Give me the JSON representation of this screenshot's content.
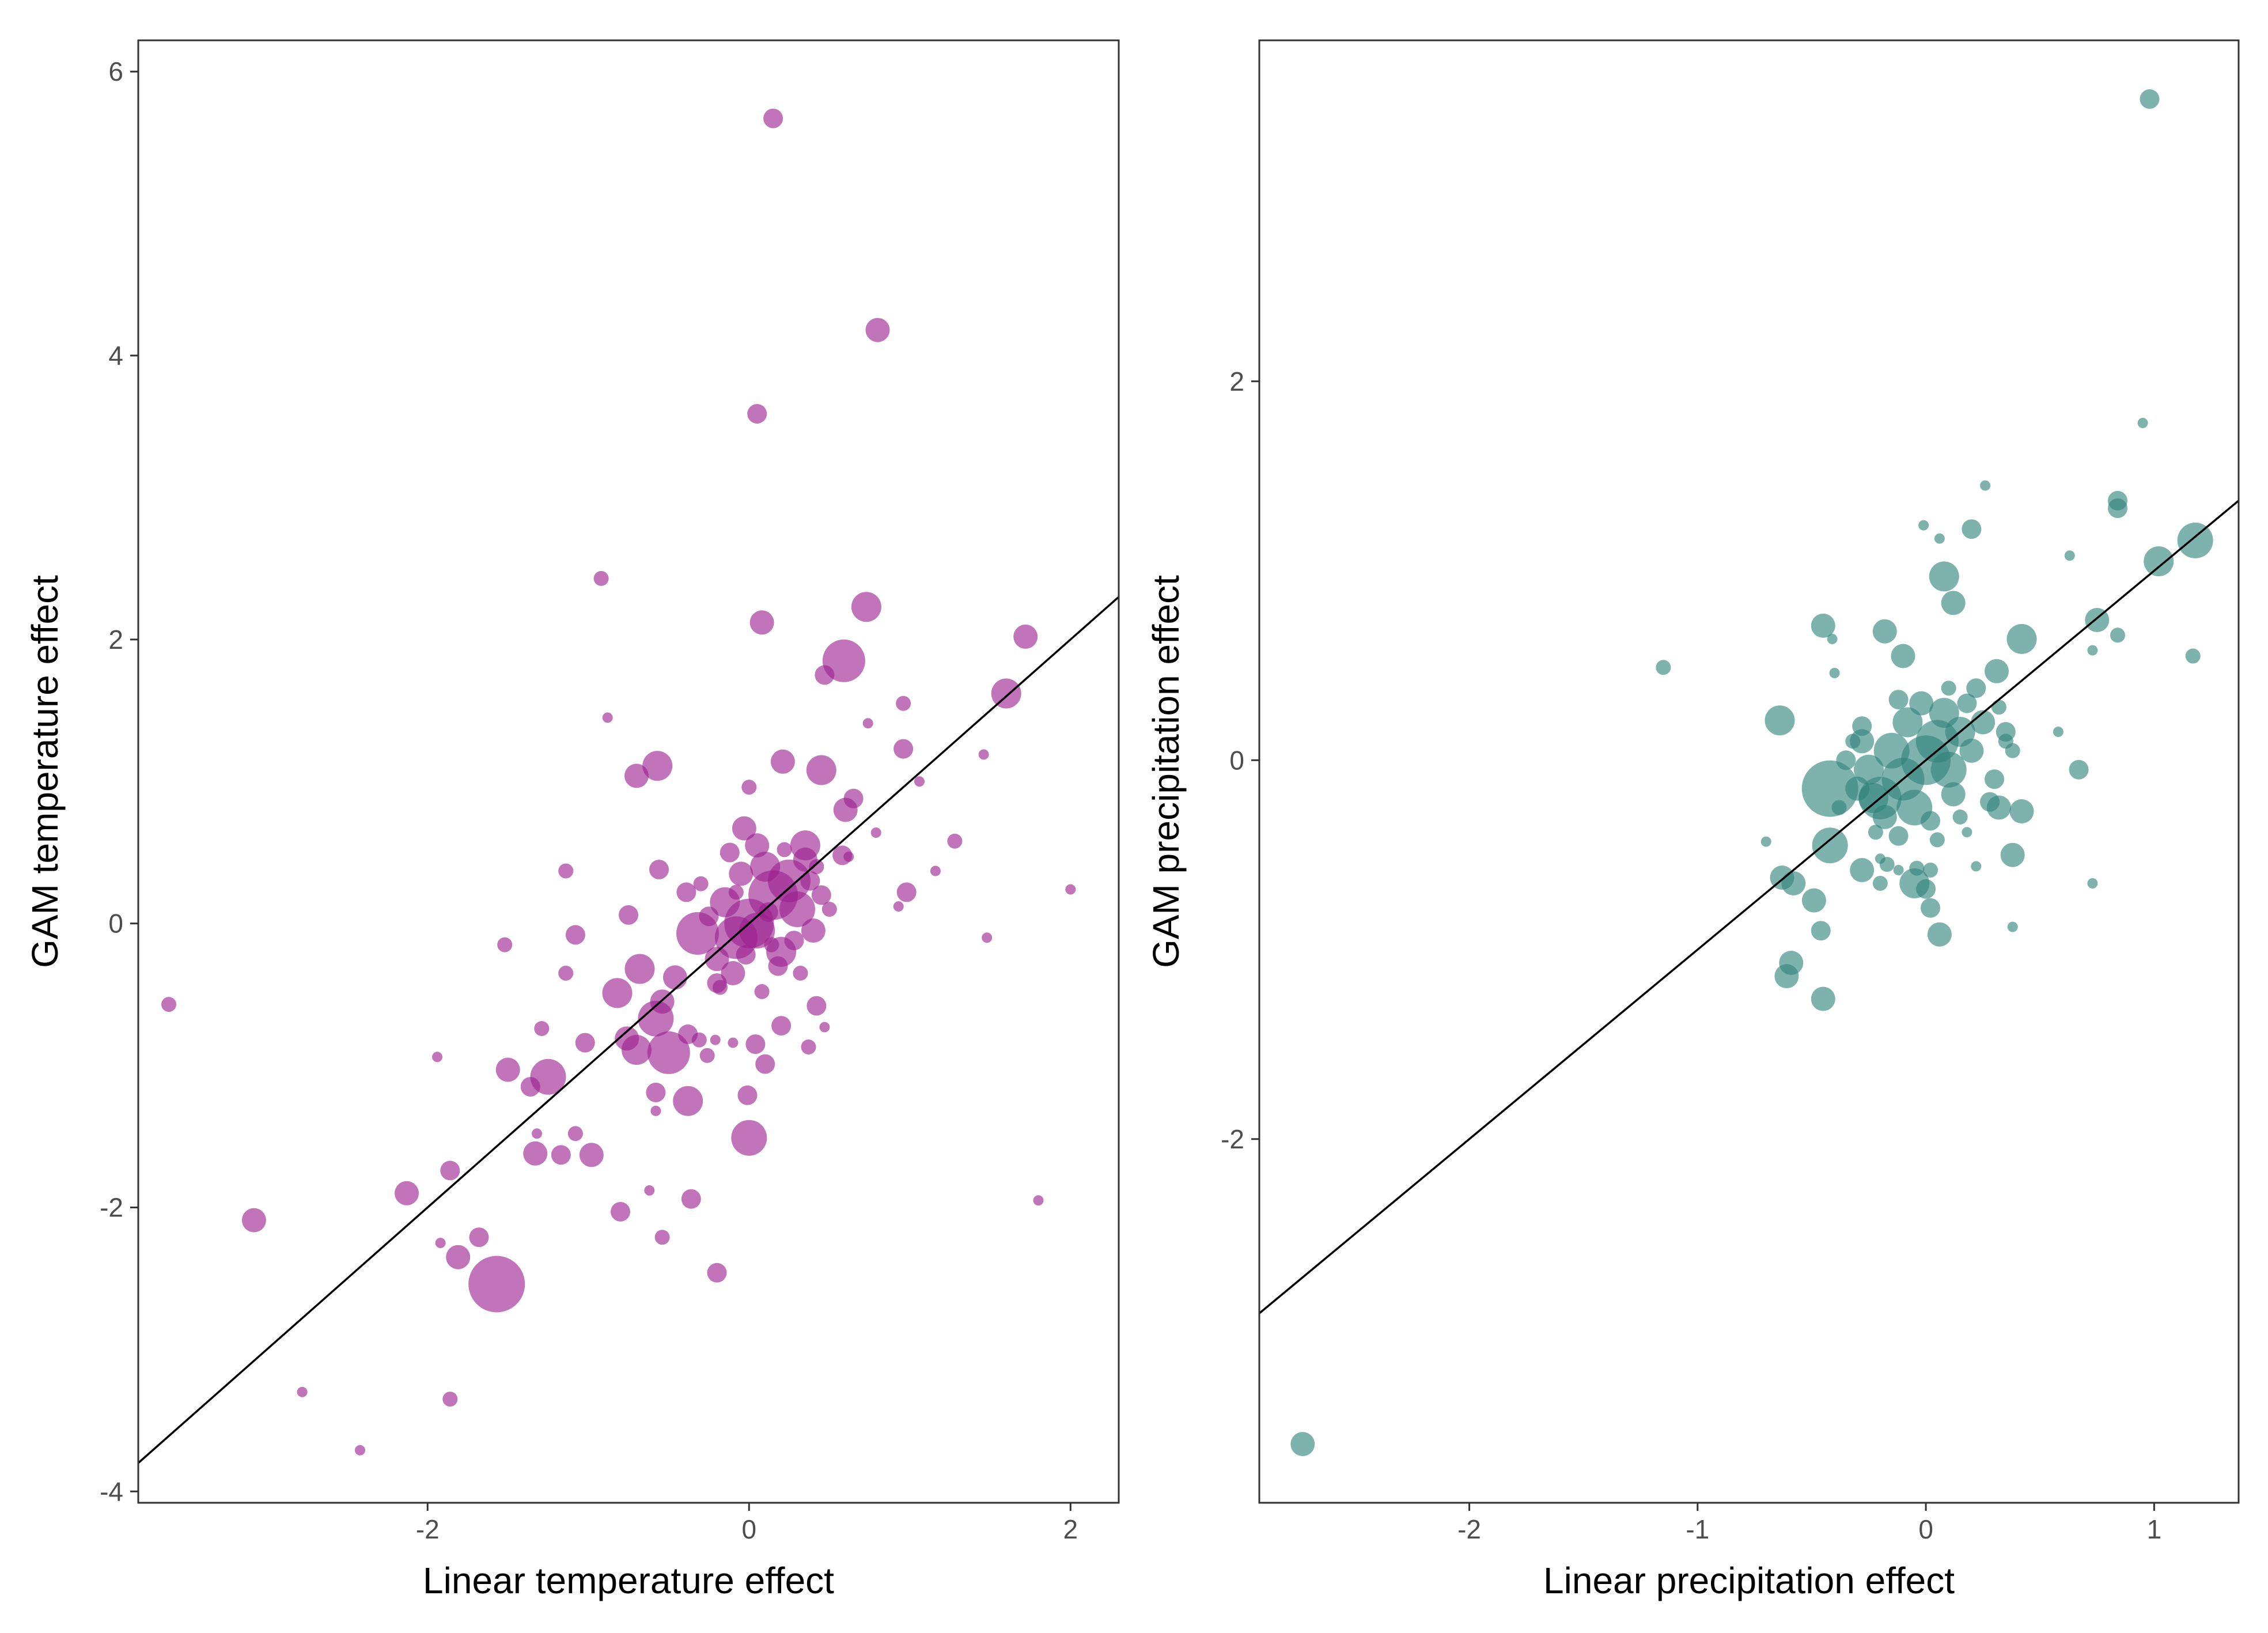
{
  "chart_data": [
    {
      "type": "scatter",
      "xlabel": "Linear temperature effect",
      "ylabel": "GAM temperature effect",
      "xlim": [
        -3.8,
        2.3
      ],
      "ylim": [
        -4.08,
        6.22
      ],
      "x_ticks": [
        -2,
        0,
        2
      ],
      "y_ticks": [
        -4,
        -2,
        0,
        2,
        4,
        6
      ],
      "grid": false,
      "legend": "none",
      "point_color": "#9b1f8e",
      "reference_line": {
        "slope": 1.0,
        "intercept": 0.0
      },
      "points": [
        {
          "x": 0.15,
          "y": 5.67,
          "s": 2
        },
        {
          "x": 0.8,
          "y": 4.18,
          "s": 3
        },
        {
          "x": 0.05,
          "y": 3.59,
          "s": 2
        },
        {
          "x": -0.92,
          "y": 2.43,
          "s": 1
        },
        {
          "x": 0.73,
          "y": 2.23,
          "s": 4
        },
        {
          "x": 0.08,
          "y": 2.12,
          "s": 3
        },
        {
          "x": 1.72,
          "y": 2.02,
          "s": 3
        },
        {
          "x": 0.59,
          "y": 1.85,
          "s": 6
        },
        {
          "x": 0.47,
          "y": 1.75,
          "s": 2
        },
        {
          "x": 1.6,
          "y": 1.62,
          "s": 4
        },
        {
          "x": 0.96,
          "y": 1.55,
          "s": 1
        },
        {
          "x": -0.88,
          "y": 1.45,
          "s": 0
        },
        {
          "x": 0.74,
          "y": 1.41,
          "s": 0
        },
        {
          "x": 0.96,
          "y": 1.23,
          "s": 2
        },
        {
          "x": 1.46,
          "y": 1.19,
          "s": 0
        },
        {
          "x": -0.57,
          "y": 1.11,
          "s": 4
        },
        {
          "x": 0.21,
          "y": 1.14,
          "s": 3
        },
        {
          "x": 0.45,
          "y": 1.08,
          "s": 4
        },
        {
          "x": -0.7,
          "y": 1.04,
          "s": 3
        },
        {
          "x": 1.06,
          "y": 1.0,
          "s": 0
        },
        {
          "x": 0.0,
          "y": 0.96,
          "s": 1
        },
        {
          "x": 0.65,
          "y": 0.88,
          "s": 2
        },
        {
          "x": 0.6,
          "y": 0.8,
          "s": 3
        },
        {
          "x": -0.03,
          "y": 0.67,
          "s": 3
        },
        {
          "x": 0.79,
          "y": 0.64,
          "s": 0
        },
        {
          "x": 1.28,
          "y": 0.58,
          "s": 1
        },
        {
          "x": 0.35,
          "y": 0.55,
          "s": 4
        },
        {
          "x": 0.58,
          "y": 0.48,
          "s": 2
        },
        {
          "x": 0.62,
          "y": 0.47,
          "s": 0
        },
        {
          "x": -0.56,
          "y": 0.38,
          "s": 2
        },
        {
          "x": -1.14,
          "y": 0.37,
          "s": 1
        },
        {
          "x": 1.16,
          "y": 0.37,
          "s": 0
        },
        {
          "x": 2.0,
          "y": 0.24,
          "s": 0
        },
        {
          "x": 0.98,
          "y": 0.22,
          "s": 2
        },
        {
          "x": -0.39,
          "y": 0.22,
          "s": 2
        },
        {
          "x": 0.93,
          "y": 0.12,
          "s": 0
        },
        {
          "x": -0.75,
          "y": 0.06,
          "s": 2
        },
        {
          "x": -1.08,
          "y": -0.08,
          "s": 2
        },
        {
          "x": -0.32,
          "y": -0.07,
          "s": 6
        },
        {
          "x": -1.52,
          "y": -0.15,
          "s": 1
        },
        {
          "x": 1.48,
          "y": -0.1,
          "s": 0
        },
        {
          "x": -1.14,
          "y": -0.35,
          "s": 1
        },
        {
          "x": -0.68,
          "y": -0.32,
          "s": 4
        },
        {
          "x": -0.46,
          "y": -0.38,
          "s": 3
        },
        {
          "x": -0.2,
          "y": -0.42,
          "s": 2
        },
        {
          "x": -0.82,
          "y": -0.49,
          "s": 4
        },
        {
          "x": -0.54,
          "y": -0.55,
          "s": 3
        },
        {
          "x": -3.61,
          "y": -0.57,
          "s": 1
        },
        {
          "x": 0.42,
          "y": -0.58,
          "s": 2
        },
        {
          "x": -0.58,
          "y": -0.67,
          "s": 5
        },
        {
          "x": 0.2,
          "y": -0.72,
          "s": 2
        },
        {
          "x": 0.47,
          "y": -0.73,
          "s": 0
        },
        {
          "x": -1.29,
          "y": -0.74,
          "s": 1
        },
        {
          "x": -0.38,
          "y": -0.78,
          "s": 2
        },
        {
          "x": -0.76,
          "y": -0.81,
          "s": 3
        },
        {
          "x": -1.02,
          "y": -0.84,
          "s": 2
        },
        {
          "x": -0.31,
          "y": -0.82,
          "s": 1
        },
        {
          "x": -0.21,
          "y": -0.82,
          "s": 0
        },
        {
          "x": -0.1,
          "y": -0.84,
          "s": 0
        },
        {
          "x": 0.04,
          "y": -0.85,
          "s": 2
        },
        {
          "x": 0.37,
          "y": -0.87,
          "s": 1
        },
        {
          "x": -0.7,
          "y": -0.89,
          "s": 4
        },
        {
          "x": -0.5,
          "y": -0.91,
          "s": 6
        },
        {
          "x": -0.26,
          "y": -0.93,
          "s": 1
        },
        {
          "x": -1.94,
          "y": -0.94,
          "s": 0
        },
        {
          "x": 0.1,
          "y": -0.99,
          "s": 2
        },
        {
          "x": -1.5,
          "y": -1.03,
          "s": 3
        },
        {
          "x": -1.25,
          "y": -1.08,
          "s": 5
        },
        {
          "x": -1.36,
          "y": -1.15,
          "s": 2
        },
        {
          "x": -0.58,
          "y": -1.19,
          "s": 2
        },
        {
          "x": -0.38,
          "y": -1.25,
          "s": 4
        },
        {
          "x": -0.01,
          "y": -1.21,
          "s": 2
        },
        {
          "x": -0.58,
          "y": -1.32,
          "s": 0
        },
        {
          "x": -1.32,
          "y": -1.48,
          "s": 0
        },
        {
          "x": -1.08,
          "y": -1.48,
          "s": 1
        },
        {
          "x": 0.0,
          "y": -1.51,
          "s": 5
        },
        {
          "x": -1.33,
          "y": -1.62,
          "s": 3
        },
        {
          "x": -1.17,
          "y": -1.63,
          "s": 2
        },
        {
          "x": -0.98,
          "y": -1.63,
          "s": 3
        },
        {
          "x": -1.86,
          "y": -1.74,
          "s": 2
        },
        {
          "x": -0.62,
          "y": -1.88,
          "s": 0
        },
        {
          "x": -2.13,
          "y": -1.9,
          "s": 3
        },
        {
          "x": -0.36,
          "y": -1.94,
          "s": 2
        },
        {
          "x": 1.8,
          "y": -1.95,
          "s": 0
        },
        {
          "x": -0.8,
          "y": -2.03,
          "s": 2
        },
        {
          "x": -3.08,
          "y": -2.09,
          "s": 3
        },
        {
          "x": -1.68,
          "y": -2.21,
          "s": 2
        },
        {
          "x": -0.54,
          "y": -2.21,
          "s": 1
        },
        {
          "x": -1.92,
          "y": -2.25,
          "s": 0
        },
        {
          "x": -1.81,
          "y": -2.35,
          "s": 3
        },
        {
          "x": -0.2,
          "y": -2.46,
          "s": 2
        },
        {
          "x": -1.57,
          "y": -2.54,
          "s": 8
        },
        {
          "x": -2.78,
          "y": -3.3,
          "s": 0
        },
        {
          "x": -1.86,
          "y": -3.35,
          "s": 1
        },
        {
          "x": -2.42,
          "y": -3.71,
          "s": 0
        },
        {
          "x": 0.0,
          "y": 0.0,
          "s": 7
        },
        {
          "x": 0.15,
          "y": 0.2,
          "s": 7
        },
        {
          "x": 0.25,
          "y": 0.3,
          "s": 6
        },
        {
          "x": -0.08,
          "y": -0.1,
          "s": 6
        },
        {
          "x": 0.05,
          "y": -0.05,
          "s": 5
        },
        {
          "x": 0.3,
          "y": 0.1,
          "s": 5
        },
        {
          "x": -0.15,
          "y": 0.15,
          "s": 4
        },
        {
          "x": 0.1,
          "y": 0.4,
          "s": 4
        },
        {
          "x": 0.2,
          "y": -0.2,
          "s": 4
        },
        {
          "x": -0.05,
          "y": 0.35,
          "s": 3
        },
        {
          "x": 0.4,
          "y": -0.05,
          "s": 3
        },
        {
          "x": -0.2,
          "y": -0.25,
          "s": 3
        },
        {
          "x": 0.35,
          "y": 0.45,
          "s": 3
        },
        {
          "x": 0.05,
          "y": 0.55,
          "s": 3
        },
        {
          "x": -0.1,
          "y": -0.35,
          "s": 3
        },
        {
          "x": 0.18,
          "y": -0.3,
          "s": 2
        },
        {
          "x": 0.45,
          "y": 0.2,
          "s": 2
        },
        {
          "x": -0.25,
          "y": 0.05,
          "s": 2
        },
        {
          "x": 0.28,
          "y": -0.12,
          "s": 2
        },
        {
          "x": -0.12,
          "y": 0.5,
          "s": 2
        },
        {
          "x": 0.12,
          "y": 0.08,
          "s": 2
        },
        {
          "x": 0.38,
          "y": 0.3,
          "s": 2
        },
        {
          "x": -0.02,
          "y": -0.22,
          "s": 2
        },
        {
          "x": 0.22,
          "y": 0.52,
          "s": 1
        },
        {
          "x": -0.18,
          "y": -0.45,
          "s": 1
        },
        {
          "x": 0.5,
          "y": 0.1,
          "s": 1
        },
        {
          "x": -0.3,
          "y": 0.28,
          "s": 1
        },
        {
          "x": 0.08,
          "y": -0.48,
          "s": 1
        },
        {
          "x": 0.32,
          "y": -0.35,
          "s": 1
        },
        {
          "x": -0.08,
          "y": 0.22,
          "s": 1
        },
        {
          "x": 0.42,
          "y": 0.4,
          "s": 1
        },
        {
          "x": 0.14,
          "y": -0.15,
          "s": 1
        }
      ]
    },
    {
      "type": "scatter",
      "xlabel": "Linear precipitation effect",
      "ylabel": "GAM precipitation effect",
      "xlim": [
        -2.92,
        1.37
      ],
      "ylim": [
        -3.92,
        3.8
      ],
      "x_ticks": [
        -2,
        -1,
        0,
        1
      ],
      "y_ticks": [
        -2,
        0,
        2
      ],
      "grid": false,
      "legend": "none",
      "point_color": "#2e827a",
      "reference_line": {
        "slope": 1.0,
        "intercept": 0.0
      },
      "points": [
        {
          "x": 0.98,
          "y": 3.49,
          "s": 2
        },
        {
          "x": 0.95,
          "y": 1.78,
          "s": 0
        },
        {
          "x": 0.26,
          "y": 1.45,
          "s": 0
        },
        {
          "x": 0.84,
          "y": 1.37,
          "s": 2
        },
        {
          "x": 0.84,
          "y": 1.33,
          "s": 2
        },
        {
          "x": -0.01,
          "y": 1.24,
          "s": 0
        },
        {
          "x": 0.2,
          "y": 1.22,
          "s": 2
        },
        {
          "x": 1.18,
          "y": 1.16,
          "s": 5
        },
        {
          "x": 0.06,
          "y": 1.17,
          "s": 0
        },
        {
          "x": 0.63,
          "y": 1.08,
          "s": 0
        },
        {
          "x": 1.02,
          "y": 1.05,
          "s": 4
        },
        {
          "x": 0.08,
          "y": 0.97,
          "s": 4
        },
        {
          "x": 0.12,
          "y": 0.83,
          "s": 3
        },
        {
          "x": -0.45,
          "y": 0.71,
          "s": 3
        },
        {
          "x": 0.75,
          "y": 0.74,
          "s": 3
        },
        {
          "x": -0.18,
          "y": 0.68,
          "s": 3
        },
        {
          "x": 0.42,
          "y": 0.64,
          "s": 4
        },
        {
          "x": 0.84,
          "y": 0.66,
          "s": 1
        },
        {
          "x": -0.41,
          "y": 0.64,
          "s": 0
        },
        {
          "x": 0.73,
          "y": 0.58,
          "s": 0
        },
        {
          "x": -0.1,
          "y": 0.55,
          "s": 3
        },
        {
          "x": 1.17,
          "y": 0.55,
          "s": 1
        },
        {
          "x": -1.15,
          "y": 0.49,
          "s": 1
        },
        {
          "x": 0.31,
          "y": 0.47,
          "s": 3
        },
        {
          "x": -0.4,
          "y": 0.46,
          "s": 0
        },
        {
          "x": -0.64,
          "y": 0.21,
          "s": 4
        },
        {
          "x": 0.58,
          "y": 0.15,
          "s": 0
        },
        {
          "x": 0.35,
          "y": 0.15,
          "s": 2
        },
        {
          "x": 0.38,
          "y": 0.05,
          "s": 1
        },
        {
          "x": -0.28,
          "y": 0.1,
          "s": 3
        },
        {
          "x": -0.42,
          "y": -0.15,
          "s": 8
        },
        {
          "x": -0.23,
          "y": -0.2,
          "s": 4
        },
        {
          "x": 0.67,
          "y": -0.05,
          "s": 2
        },
        {
          "x": 0.32,
          "y": -0.25,
          "s": 3
        },
        {
          "x": 0.42,
          "y": -0.27,
          "s": 3
        },
        {
          "x": 0.18,
          "y": -0.38,
          "s": 0
        },
        {
          "x": -0.12,
          "y": -0.4,
          "s": 2
        },
        {
          "x": -0.42,
          "y": -0.45,
          "s": 5
        },
        {
          "x": -0.7,
          "y": -0.43,
          "s": 0
        },
        {
          "x": 0.38,
          "y": -0.5,
          "s": 3
        },
        {
          "x": -0.2,
          "y": -0.52,
          "s": 0
        },
        {
          "x": -0.17,
          "y": -0.55,
          "s": 1
        },
        {
          "x": -0.28,
          "y": -0.58,
          "s": 3
        },
        {
          "x": -0.12,
          "y": -0.58,
          "s": 0
        },
        {
          "x": -0.04,
          "y": -0.57,
          "s": 1
        },
        {
          "x": 0.02,
          "y": -0.58,
          "s": 1
        },
        {
          "x": 0.22,
          "y": -0.56,
          "s": 0
        },
        {
          "x": -0.63,
          "y": -0.62,
          "s": 3
        },
        {
          "x": -0.58,
          "y": -0.65,
          "s": 3
        },
        {
          "x": -0.05,
          "y": -0.65,
          "s": 4
        },
        {
          "x": -0.2,
          "y": -0.65,
          "s": 1
        },
        {
          "x": 0.73,
          "y": -0.65,
          "s": 0
        },
        {
          "x": 0.0,
          "y": -0.68,
          "s": 2
        },
        {
          "x": -0.49,
          "y": -0.74,
          "s": 3
        },
        {
          "x": 0.02,
          "y": -0.78,
          "s": 2
        },
        {
          "x": -0.46,
          "y": -0.9,
          "s": 2
        },
        {
          "x": 0.06,
          "y": -0.92,
          "s": 3
        },
        {
          "x": 0.38,
          "y": -0.88,
          "s": 0
        },
        {
          "x": -0.59,
          "y": -1.07,
          "s": 3
        },
        {
          "x": -0.61,
          "y": -1.14,
          "s": 3
        },
        {
          "x": -0.45,
          "y": -1.26,
          "s": 3
        },
        {
          "x": -2.73,
          "y": -3.61,
          "s": 3
        },
        {
          "x": 0.0,
          "y": 0.0,
          "s": 7
        },
        {
          "x": -0.1,
          "y": -0.1,
          "s": 6
        },
        {
          "x": 0.05,
          "y": 0.1,
          "s": 6
        },
        {
          "x": -0.2,
          "y": -0.2,
          "s": 6
        },
        {
          "x": -0.05,
          "y": -0.25,
          "s": 5
        },
        {
          "x": 0.1,
          "y": -0.05,
          "s": 5
        },
        {
          "x": -0.15,
          "y": 0.05,
          "s": 5
        },
        {
          "x": 0.15,
          "y": 0.15,
          "s": 4
        },
        {
          "x": -0.25,
          "y": -0.05,
          "s": 4
        },
        {
          "x": 0.08,
          "y": 0.25,
          "s": 4
        },
        {
          "x": -0.08,
          "y": 0.2,
          "s": 4
        },
        {
          "x": 0.2,
          "y": 0.05,
          "s": 3
        },
        {
          "x": -0.3,
          "y": -0.15,
          "s": 3
        },
        {
          "x": 0.12,
          "y": -0.18,
          "s": 3
        },
        {
          "x": -0.02,
          "y": 0.3,
          "s": 3
        },
        {
          "x": 0.25,
          "y": 0.2,
          "s": 3
        },
        {
          "x": -0.18,
          "y": -0.3,
          "s": 3
        },
        {
          "x": 0.18,
          "y": 0.3,
          "s": 2
        },
        {
          "x": -0.35,
          "y": 0.0,
          "s": 2
        },
        {
          "x": 0.3,
          "y": -0.1,
          "s": 2
        },
        {
          "x": 0.02,
          "y": -0.32,
          "s": 2
        },
        {
          "x": -0.12,
          "y": 0.32,
          "s": 2
        },
        {
          "x": 0.22,
          "y": 0.38,
          "s": 2
        },
        {
          "x": -0.28,
          "y": 0.18,
          "s": 2
        },
        {
          "x": 0.28,
          "y": -0.22,
          "s": 2
        },
        {
          "x": 0.1,
          "y": 0.38,
          "s": 1
        },
        {
          "x": -0.22,
          "y": -0.38,
          "s": 1
        },
        {
          "x": 0.35,
          "y": 0.1,
          "s": 1
        },
        {
          "x": -0.38,
          "y": -0.25,
          "s": 1
        },
        {
          "x": 0.05,
          "y": -0.42,
          "s": 1
        },
        {
          "x": 0.32,
          "y": 0.28,
          "s": 1
        },
        {
          "x": -0.32,
          "y": 0.1,
          "s": 1
        },
        {
          "x": 0.15,
          "y": -0.3,
          "s": 1
        }
      ]
    }
  ]
}
